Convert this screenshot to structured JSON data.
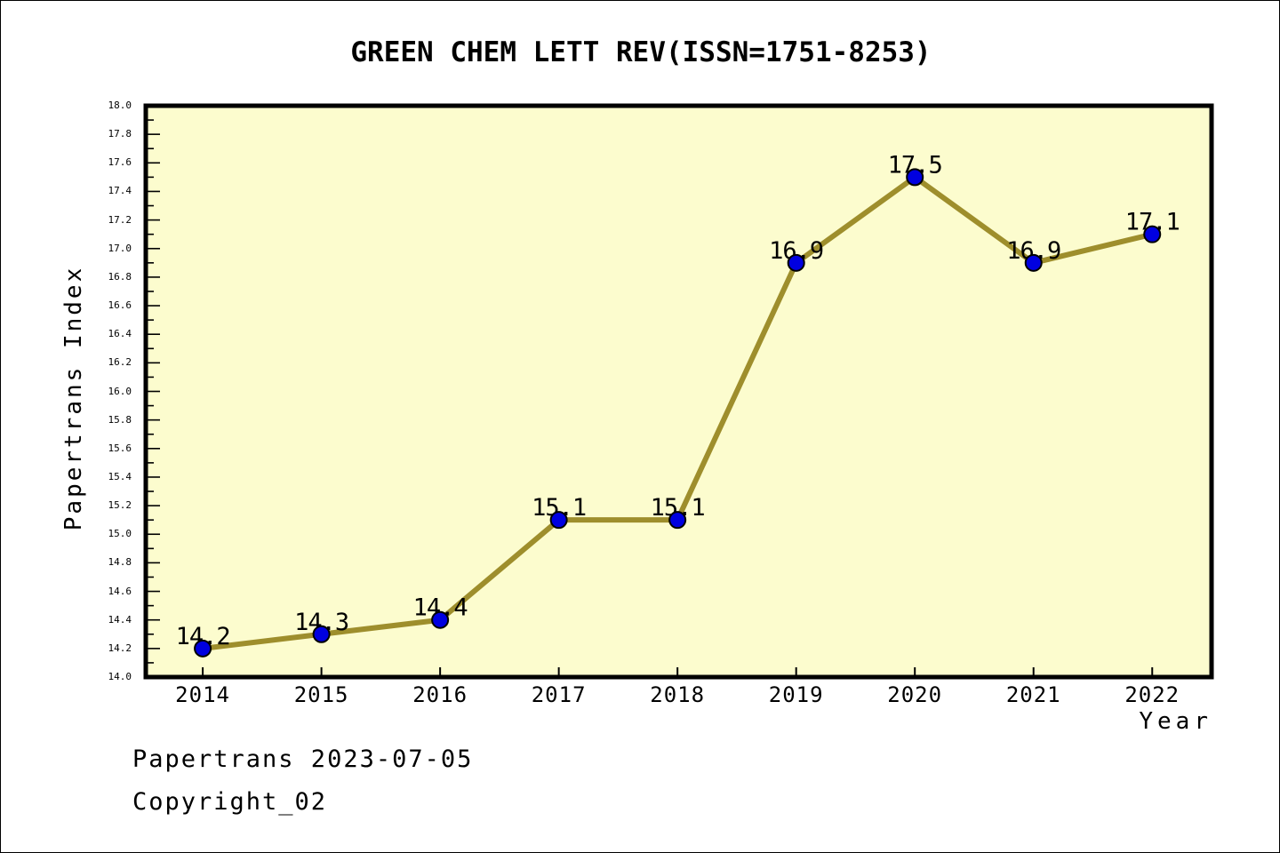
{
  "title": "GREEN CHEM LETT REV(ISSN=1751-8253)",
  "footer": {
    "line1": "Papertrans 2023-07-05",
    "line2": "Copyright_02"
  },
  "chart_data": {
    "type": "line",
    "title": "GREEN CHEM LETT REV(ISSN=1751-8253)",
    "xlabel": "Year",
    "ylabel": "Papertrans Index",
    "x": [
      2014,
      2015,
      2016,
      2017,
      2018,
      2019,
      2020,
      2021,
      2022
    ],
    "values": [
      14.2,
      14.3,
      14.4,
      15.1,
      15.1,
      16.9,
      17.5,
      16.9,
      17.1
    ],
    "point_labels": [
      "14.2",
      "14.3",
      "14.4",
      "15.1",
      "15.1",
      "16.9",
      "17.5",
      "16.9",
      "17.1"
    ],
    "ylim": [
      14.0,
      18.0
    ],
    "xlim": [
      2013.52,
      2022.5
    ],
    "y_major_step": 0.2,
    "y_minor_step": 0.1,
    "grid": false,
    "legend_position": "none",
    "colors": {
      "plot_bg": "#FCFCCE",
      "line": "#9E8E2C",
      "marker": "#0000E0",
      "marker_edge": "#000000",
      "frame": "#000000",
      "text": "#000000",
      "page_bg": "#FFFFFF"
    }
  }
}
